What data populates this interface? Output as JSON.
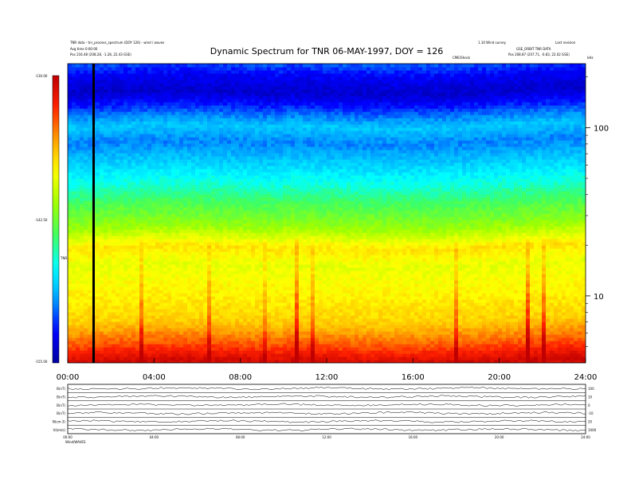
{
  "header": {
    "left_line1": "TNR data - tnr_process_spectrum (DOY 126) - wind / waves",
    "left_line2": "Avg time 0:00:00",
    "left_line3": "Pos   216.48 (208.28, -1.28, 22.43 GSE)",
    "right_line1": "1.10 Wind survey",
    "right_line2": "Last revision",
    "right_line3": "GSE_ORBIT   TNR DATA",
    "right_line4": "Pos   208.87 (207.71, -0.83, 22.02 GSE)",
    "marker_label": "CME/Shock"
  },
  "chart_data": {
    "type": "heatmap",
    "title": "Dynamic Spectrum for TNR 06-MAY-1997, DOY = 126",
    "x_tick_labels": [
      "00:00",
      "04:00",
      "08:00",
      "12:00",
      "16:00",
      "20:00",
      "24:00"
    ],
    "x_range_hours": [
      0,
      24
    ],
    "y_scale": "log",
    "y_unit": "kHz",
    "y_range": [
      4,
      240
    ],
    "y_ticks": [
      10,
      100
    ],
    "y_tick_labels": [
      "10",
      "100"
    ],
    "colorbar": {
      "label": "TNR",
      "range": [
        -155.0,
        -130.0
      ],
      "tick_labels": [
        "-130.00",
        "-142.50",
        "-155.00"
      ],
      "colors": [
        "#0000a0",
        "#0000ff",
        "#00a0ff",
        "#00ffff",
        "#40ff60",
        "#a0ff00",
        "#ffff00",
        "#ffa000",
        "#ff2000",
        "#c00000"
      ]
    },
    "intensity_profile": [
      {
        "f": 4,
        "level": 0.97
      },
      {
        "f": 5,
        "level": 0.85
      },
      {
        "f": 7,
        "level": 0.72
      },
      {
        "f": 10,
        "level": 0.68
      },
      {
        "f": 15,
        "level": 0.64
      },
      {
        "f": 19,
        "level": 0.7
      },
      {
        "f": 25,
        "level": 0.55
      },
      {
        "f": 35,
        "level": 0.45
      },
      {
        "f": 45,
        "level": 0.36
      },
      {
        "f": 60,
        "level": 0.28
      },
      {
        "f": 80,
        "level": 0.2
      },
      {
        "f": 100,
        "level": 0.27
      },
      {
        "f": 130,
        "level": 0.14
      },
      {
        "f": 160,
        "level": 0.05
      },
      {
        "f": 200,
        "level": 0.1
      },
      {
        "f": 240,
        "level": 0.18
      }
    ],
    "marker_time_hours": 1.2
  },
  "aux_panels": {
    "labels": [
      "B(nT)",
      "B(nT)",
      "B(nT)",
      "B(nT)",
      "N(cm-3)",
      "V(km/s)"
    ],
    "right_labels": [
      "100",
      "10",
      "0",
      "-10",
      "20",
      "1000"
    ],
    "time_tick_labels": [
      "00:00",
      "04:00",
      "08:00",
      "12:00",
      "16:00",
      "20:00",
      "24:00"
    ],
    "footer": "Wind/WAVES"
  }
}
